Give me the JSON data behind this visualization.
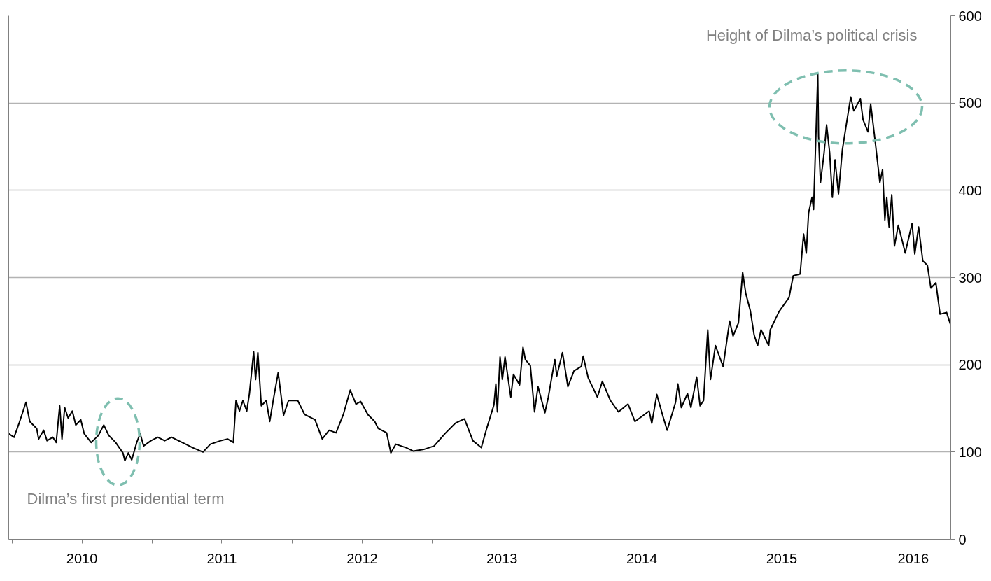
{
  "chart_data": {
    "type": "line",
    "x": [
      "2009-12-23",
      "2010-01-06",
      "2010-01-19",
      "2010-02-06",
      "2010-02-16",
      "2010-03-06",
      "2010-03-11",
      "2010-03-24",
      "2010-04-02",
      "2010-04-17",
      "2010-04-26",
      "2010-05-05",
      "2010-05-11",
      "2010-05-18",
      "2010-05-27",
      "2010-06-07",
      "2010-06-16",
      "2010-06-29",
      "2010-07-08",
      "2010-07-26",
      "2010-08-14",
      "2010-08-28",
      "2010-09-10",
      "2010-09-28",
      "2010-10-17",
      "2010-10-22",
      "2010-10-31",
      "2010-11-09",
      "2010-11-22",
      "2010-12-01",
      "2010-12-10",
      "2010-12-29",
      "2011-01-16",
      "2011-02-03",
      "2011-02-21",
      "2011-03-11",
      "2011-03-30",
      "2011-04-17",
      "2011-05-14",
      "2011-06-02",
      "2011-06-29",
      "2011-07-17",
      "2011-08-01",
      "2011-08-08",
      "2011-08-17",
      "2011-08-26",
      "2011-09-05",
      "2011-09-12",
      "2011-09-23",
      "2011-09-28",
      "2011-10-04",
      "2011-10-13",
      "2011-10-26",
      "2011-11-04",
      "2011-11-13",
      "2011-11-26",
      "2011-12-10",
      "2011-12-23",
      "2012-01-16",
      "2012-02-03",
      "2012-03-01",
      "2012-03-20",
      "2012-04-07",
      "2012-04-25",
      "2012-05-14",
      "2012-06-01",
      "2012-06-16",
      "2012-06-28",
      "2012-07-17",
      "2012-08-04",
      "2012-08-13",
      "2012-09-04",
      "2012-09-15",
      "2012-09-28",
      "2012-10-25",
      "2012-11-13",
      "2012-12-10",
      "2013-01-06",
      "2013-02-03",
      "2013-03-02",
      "2013-03-26",
      "2013-04-17",
      "2013-05-09",
      "2013-05-23",
      "2013-06-11",
      "2013-06-16",
      "2013-06-20",
      "2013-06-27",
      "2013-07-03",
      "2013-07-10",
      "2013-07-25",
      "2013-08-01",
      "2013-08-17",
      "2013-08-26",
      "2013-09-01",
      "2013-09-14",
      "2013-09-25",
      "2013-10-04",
      "2013-10-22",
      "2013-10-31",
      "2013-11-17",
      "2013-11-22",
      "2013-12-07",
      "2013-12-21",
      "2014-01-06",
      "2014-01-25",
      "2014-01-30",
      "2014-02-12",
      "2014-03-08",
      "2014-03-21",
      "2014-04-11",
      "2014-05-02",
      "2014-05-27",
      "2014-06-14",
      "2014-07-21",
      "2014-07-28",
      "2014-08-10",
      "2014-08-26",
      "2014-09-06",
      "2014-09-28",
      "2014-10-04",
      "2014-10-13",
      "2014-10-29",
      "2014-11-07",
      "2014-11-22",
      "2014-12-01",
      "2014-12-10",
      "2014-12-21",
      "2014-12-28",
      "2015-01-10",
      "2015-01-30",
      "2015-02-16",
      "2015-02-25",
      "2015-03-11",
      "2015-03-22",
      "2015-03-30",
      "2015-04-11",
      "2015-04-21",
      "2015-04-30",
      "2015-05-09",
      "2015-05-29",
      "2015-06-02",
      "2015-06-25",
      "2015-07-21",
      "2015-08-01",
      "2015-08-19",
      "2015-08-28",
      "2015-09-04",
      "2015-09-10",
      "2015-09-19",
      "2015-09-23",
      "2015-09-30",
      "2015-10-04",
      "2015-10-06",
      "2015-10-11",
      "2015-10-20",
      "2015-10-27",
      "2015-11-04",
      "2015-11-11",
      "2015-11-18",
      "2015-11-27",
      "2015-12-07",
      "2015-12-18",
      "2015-12-29",
      "2016-01-06",
      "2016-01-23",
      "2016-01-30",
      "2016-02-12",
      "2016-02-19",
      "2016-03-01",
      "2016-03-14",
      "2016-03-21",
      "2016-03-27",
      "2016-04-01",
      "2016-04-07",
      "2016-04-14",
      "2016-04-21",
      "2016-05-01",
      "2016-05-13",
      "2016-05-19",
      "2016-06-06",
      "2016-06-13",
      "2016-06-23",
      "2016-07-04",
      "2016-07-16",
      "2016-07-25",
      "2016-08-07",
      "2016-08-18",
      "2016-09-04",
      "2016-09-15"
    ],
    "series": [
      {
        "color": "#000000",
        "values": [
          121,
          117,
          133,
          157,
          135,
          127,
          115,
          125,
          113,
          117,
          111,
          153,
          115,
          151,
          139,
          147,
          131,
          137,
          121,
          111,
          119,
          131,
          119,
          111,
          99,
          90,
          99,
          91,
          111,
          121,
          107,
          113,
          117,
          113,
          117,
          113,
          109,
          105,
          100,
          109,
          113,
          115,
          111,
          159,
          147,
          159,
          147,
          167,
          215,
          183,
          214,
          153,
          159,
          135,
          159,
          191,
          142,
          159,
          159,
          143,
          137,
          115,
          125,
          122,
          143,
          171,
          155,
          158,
          143,
          135,
          127,
          122,
          99,
          109,
          105,
          101,
          103,
          107,
          121,
          133,
          138,
          113,
          105,
          127,
          154,
          178,
          146,
          209,
          183,
          209,
          163,
          189,
          177,
          220,
          206,
          199,
          146,
          175,
          145,
          163,
          206,
          187,
          214,
          175,
          193,
          198,
          210,
          185,
          163,
          181,
          159,
          146,
          155,
          135,
          147,
          133,
          166,
          141,
          125,
          157,
          178,
          151,
          167,
          151,
          186,
          153,
          159,
          240,
          183,
          222,
          198,
          250,
          233,
          248,
          306,
          282,
          262,
          234,
          222,
          240,
          222,
          240,
          261,
          277,
          302,
          304,
          350,
          328,
          374,
          392,
          378,
          475,
          533,
          462,
          409,
          441,
          475,
          443,
          392,
          435,
          396,
          446,
          477,
          507,
          491,
          505,
          481,
          467,
          499,
          459,
          409,
          424,
          366,
          392,
          358,
          395,
          336,
          360,
          339,
          328,
          362,
          327,
          358,
          319,
          314,
          288,
          294,
          258,
          260,
          245
        ]
      }
    ],
    "xlim": [
      "2009-12-23",
      "2016-09-15"
    ],
    "xticks": [
      {
        "value": "2010-01-01",
        "label": null
      },
      {
        "value": "2010-07-02",
        "label": "2010"
      },
      {
        "value": "2011-01-01",
        "label": null
      },
      {
        "value": "2011-07-02",
        "label": "2011"
      },
      {
        "value": "2012-01-01",
        "label": null
      },
      {
        "value": "2012-07-02",
        "label": "2012"
      },
      {
        "value": "2013-01-01",
        "label": null
      },
      {
        "value": "2013-07-02",
        "label": "2013"
      },
      {
        "value": "2014-01-01",
        "label": null
      },
      {
        "value": "2014-07-02",
        "label": "2014"
      },
      {
        "value": "2015-01-01",
        "label": null
      },
      {
        "value": "2015-07-02",
        "label": "2015"
      },
      {
        "value": "2016-01-01",
        "label": null
      },
      {
        "value": "2016-06-09",
        "label": "2016"
      }
    ],
    "ylim": [
      0,
      600
    ],
    "yticks": [
      0,
      100,
      200,
      300,
      400,
      500,
      600
    ],
    "grid": "y",
    "marker": "none",
    "line_style": "solid",
    "annotations": [
      "Dilma’s first presidential term",
      "Height of Dilma’s political crisis"
    ]
  }
}
